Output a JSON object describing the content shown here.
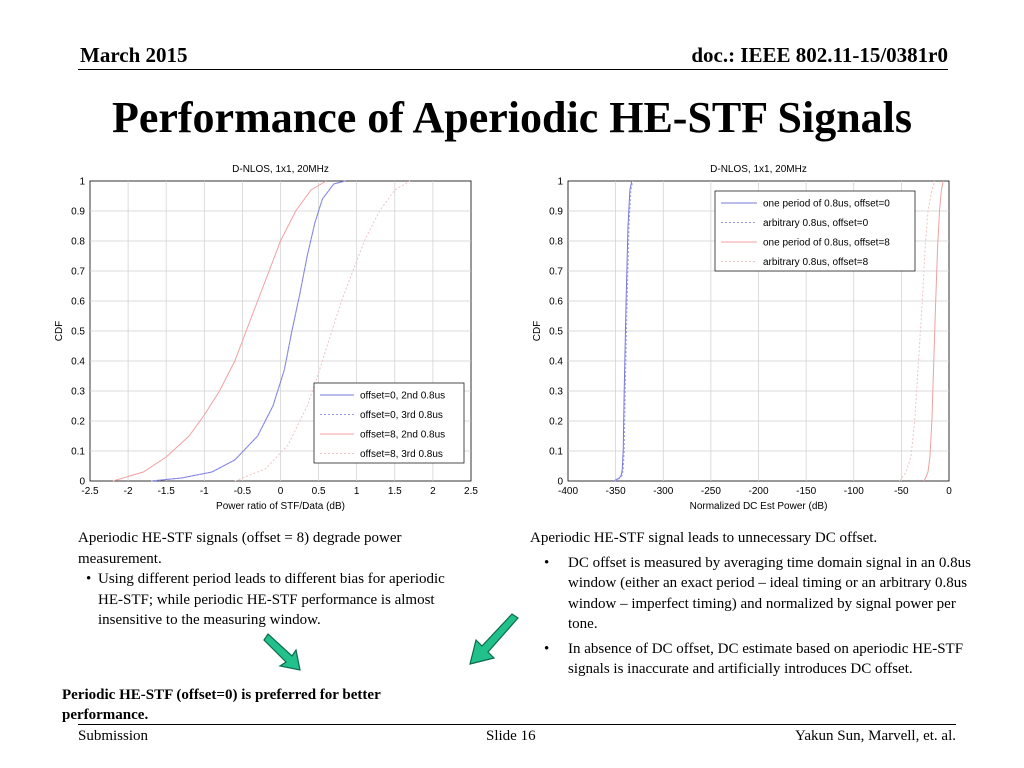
{
  "header": {
    "date": "March 2015",
    "doc": "doc.: IEEE 802.11-15/0381r0"
  },
  "title": "Performance of Aperiodic HE-STF Signals",
  "chart_data": [
    {
      "type": "line",
      "title": "D-NLOS, 1x1, 20MHz",
      "xlabel": "Power ratio of STF/Data (dB)",
      "ylabel": "CDF",
      "xlim": [
        -2.5,
        2.5
      ],
      "ylim": [
        0,
        1
      ],
      "xticks": [
        "-2.5",
        "-2",
        "-1.5",
        "-1",
        "-0.5",
        "0",
        "0.5",
        "1",
        "1.5",
        "2",
        "2.5"
      ],
      "yticks": [
        "0",
        "0.1",
        "0.2",
        "0.3",
        "0.4",
        "0.5",
        "0.6",
        "0.7",
        "0.8",
        "0.9",
        "1"
      ],
      "grid": true,
      "legend_position": "bottom-right",
      "series": [
        {
          "name": "offset=0, 2nd 0.8us",
          "color": "#7777dd",
          "style": "solid",
          "x": [
            -1.7,
            -1.3,
            -0.9,
            -0.6,
            -0.3,
            -0.1,
            0.05,
            0.15,
            0.25,
            0.35,
            0.45,
            0.55,
            0.7,
            0.85
          ],
          "y": [
            0.0,
            0.01,
            0.03,
            0.07,
            0.15,
            0.25,
            0.37,
            0.5,
            0.62,
            0.75,
            0.86,
            0.94,
            0.99,
            1.0
          ]
        },
        {
          "name": "offset=0, 3rd 0.8us",
          "color": "#9999ee",
          "style": "dotted",
          "x": [
            -1.7,
            -1.3,
            -0.9,
            -0.6,
            -0.3,
            -0.1,
            0.05,
            0.15,
            0.25,
            0.35,
            0.45,
            0.55,
            0.7,
            0.85
          ],
          "y": [
            0.0,
            0.01,
            0.03,
            0.07,
            0.15,
            0.25,
            0.37,
            0.5,
            0.62,
            0.75,
            0.86,
            0.94,
            0.99,
            1.0
          ]
        },
        {
          "name": "offset=8, 2nd 0.8us",
          "color": "#f2a0a0",
          "style": "solid",
          "x": [
            -2.2,
            -1.8,
            -1.5,
            -1.2,
            -1.0,
            -0.8,
            -0.6,
            -0.45,
            -0.3,
            -0.15,
            0.0,
            0.2,
            0.4,
            0.6
          ],
          "y": [
            0.0,
            0.03,
            0.08,
            0.15,
            0.22,
            0.3,
            0.4,
            0.5,
            0.6,
            0.7,
            0.8,
            0.9,
            0.97,
            1.0
          ]
        },
        {
          "name": "offset=8, 3rd 0.8us",
          "color": "#eec4c4",
          "style": "dotted",
          "x": [
            -0.6,
            -0.2,
            0.1,
            0.35,
            0.5,
            0.65,
            0.8,
            0.95,
            1.1,
            1.3,
            1.5,
            1.7
          ],
          "y": [
            0.0,
            0.04,
            0.12,
            0.25,
            0.36,
            0.48,
            0.6,
            0.7,
            0.8,
            0.9,
            0.97,
            1.0
          ]
        }
      ]
    },
    {
      "type": "line",
      "title": "D-NLOS, 1x1, 20MHz",
      "xlabel": "Normalized DC Est Power (dB)",
      "ylabel": "CDF",
      "xlim": [
        -400,
        0
      ],
      "ylim": [
        0,
        1
      ],
      "xticks": [
        "-400",
        "-350",
        "-300",
        "-250",
        "-200",
        "-150",
        "-100",
        "-50",
        "0"
      ],
      "yticks": [
        "0",
        "0.1",
        "0.2",
        "0.3",
        "0.4",
        "0.5",
        "0.6",
        "0.7",
        "0.8",
        "0.9",
        "1"
      ],
      "grid": true,
      "legend_position": "top-right",
      "series": [
        {
          "name": "one period of 0.8us, offset=0",
          "color": "#7777dd",
          "style": "solid",
          "x": [
            -352,
            -346,
            -344,
            -343,
            -342,
            -341,
            -339,
            -337,
            -335,
            -333
          ],
          "y": [
            0.0,
            0.01,
            0.02,
            0.04,
            0.1,
            0.3,
            0.6,
            0.85,
            0.97,
            1.0
          ]
        },
        {
          "name": "arbitrary 0.8us, offset=0",
          "color": "#9999ee",
          "style": "dotted",
          "x": [
            -351,
            -345,
            -343,
            -342,
            -341,
            -340,
            -338,
            -336,
            -334,
            -332
          ],
          "y": [
            0.0,
            0.01,
            0.02,
            0.04,
            0.1,
            0.3,
            0.6,
            0.85,
            0.97,
            1.0
          ]
        },
        {
          "name": "one period of 0.8us, offset=8",
          "color": "#f2a0a0",
          "style": "solid",
          "x": [
            -26,
            -22,
            -20,
            -18,
            -16,
            -14,
            -12,
            -10,
            -8,
            -6
          ],
          "y": [
            0.0,
            0.03,
            0.08,
            0.2,
            0.4,
            0.6,
            0.78,
            0.9,
            0.97,
            1.0
          ]
        },
        {
          "name": "arbitrary 0.8us, offset=8",
          "color": "#eec4c4",
          "style": "dotted",
          "x": [
            -52,
            -45,
            -40,
            -36,
            -32,
            -28,
            -25,
            -22,
            -18,
            -15
          ],
          "y": [
            0.0,
            0.03,
            0.08,
            0.2,
            0.4,
            0.6,
            0.78,
            0.9,
            0.97,
            1.0
          ]
        }
      ]
    }
  ],
  "left_text": {
    "intro": "Aperiodic HE-STF signals (offset = 8) degrade power measurement.",
    "bullets": [
      "Using different period leads to different bias for aperiodic HE-STF; while periodic HE-STF performance is almost insensitive to the measuring window."
    ]
  },
  "right_text": {
    "intro": "Aperiodic HE-STF signal leads to unnecessary DC offset.",
    "bullets": [
      "DC offset is measured by averaging time domain signal in an 0.8us window (either an exact period – ideal timing or an arbitrary 0.8us window – imperfect timing) and normalized by signal power per tone.",
      "In absence of DC offset, DC estimate based on aperiodic HE-STF signals is inaccurate and artificially introduces DC offset."
    ]
  },
  "conclusion": "Periodic HE-STF (offset=0) is preferred for better performance.",
  "footer": {
    "left": "Submission",
    "center": "Slide 16",
    "right": "Yakun Sun,  Marvell, et. al."
  },
  "colors": {
    "arrow_fill": "#22c08a",
    "arrow_stroke": "#0d6b4a"
  }
}
